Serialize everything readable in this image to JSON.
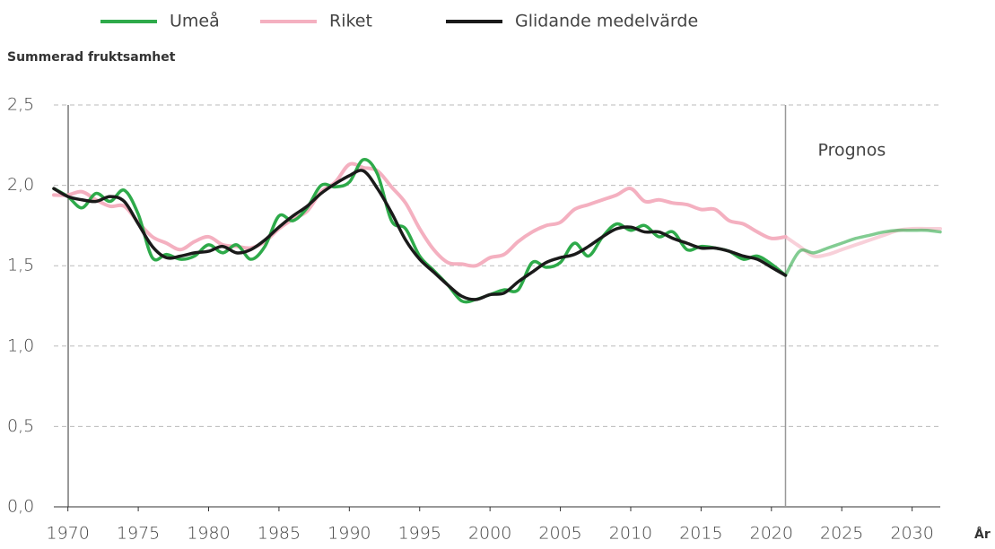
{
  "chart_data": {
    "type": "line",
    "y_axis_label": "Summerad fruktsamhet",
    "x_axis_label": "År",
    "annotation": "Prognos",
    "forecast_start": 2021,
    "x": [
      1969,
      1970,
      1971,
      1972,
      1973,
      1974,
      1975,
      1976,
      1977,
      1978,
      1979,
      1980,
      1981,
      1982,
      1983,
      1984,
      1985,
      1986,
      1987,
      1988,
      1989,
      1990,
      1991,
      1992,
      1993,
      1994,
      1995,
      1996,
      1997,
      1998,
      1999,
      2000,
      2001,
      2002,
      2003,
      2004,
      2005,
      2006,
      2007,
      2008,
      2009,
      2010,
      2011,
      2012,
      2013,
      2014,
      2015,
      2016,
      2017,
      2018,
      2019,
      2020,
      2021,
      2022,
      2023,
      2024,
      2025,
      2026,
      2027,
      2028,
      2029,
      2030,
      2031,
      2032
    ],
    "series": [
      {
        "name": "Umeå",
        "color": "#2eaa4a",
        "values": [
          1.98,
          1.93,
          1.86,
          1.95,
          1.9,
          1.97,
          1.82,
          1.55,
          1.57,
          1.54,
          1.56,
          1.63,
          1.58,
          1.63,
          1.54,
          1.62,
          1.81,
          1.78,
          1.86,
          2.0,
          1.99,
          2.02,
          2.16,
          2.07,
          1.78,
          1.73,
          1.56,
          1.47,
          1.38,
          1.28,
          1.29,
          1.32,
          1.35,
          1.35,
          1.52,
          1.49,
          1.52,
          1.64,
          1.56,
          1.68,
          1.76,
          1.72,
          1.75,
          1.68,
          1.71,
          1.6,
          1.62,
          1.61,
          1.59,
          1.54,
          1.56,
          1.51,
          1.44,
          1.59,
          1.58,
          1.61,
          1.64,
          1.67,
          1.69,
          1.71,
          1.72,
          1.72,
          1.72,
          1.71
        ]
      },
      {
        "name": "Riket",
        "color": "#f4b0c0",
        "values": [
          1.94,
          1.94,
          1.96,
          1.91,
          1.87,
          1.87,
          1.77,
          1.68,
          1.64,
          1.6,
          1.65,
          1.68,
          1.63,
          1.62,
          1.61,
          1.65,
          1.73,
          1.79,
          1.84,
          1.96,
          2.02,
          2.13,
          2.11,
          2.09,
          1.99,
          1.89,
          1.73,
          1.6,
          1.52,
          1.51,
          1.5,
          1.55,
          1.57,
          1.65,
          1.71,
          1.75,
          1.77,
          1.85,
          1.88,
          1.91,
          1.94,
          1.98,
          1.9,
          1.91,
          1.89,
          1.88,
          1.85,
          1.85,
          1.78,
          1.76,
          1.71,
          1.67,
          1.68,
          1.62,
          1.56,
          1.57,
          1.6,
          1.63,
          1.66,
          1.69,
          1.72,
          1.73,
          1.73,
          1.73
        ]
      },
      {
        "name": "Glidande medelvärde",
        "color": "#1a1a1a",
        "values": [
          1.98,
          1.93,
          1.91,
          1.9,
          1.93,
          1.9,
          1.76,
          1.62,
          1.55,
          1.56,
          1.58,
          1.59,
          1.62,
          1.58,
          1.6,
          1.66,
          1.74,
          1.81,
          1.87,
          1.95,
          2.01,
          2.06,
          2.09,
          1.98,
          1.83,
          1.66,
          1.54,
          1.46,
          1.38,
          1.31,
          1.29,
          1.32,
          1.33,
          1.4,
          1.46,
          1.52,
          1.55,
          1.57,
          1.62,
          1.68,
          1.73,
          1.74,
          1.71,
          1.71,
          1.67,
          1.64,
          1.61,
          1.61,
          1.59,
          1.56,
          1.54,
          1.49,
          1.44,
          null,
          null,
          null,
          null,
          null,
          null,
          null,
          null,
          null,
          null,
          null
        ]
      }
    ],
    "xlim": [
      1969,
      2032
    ],
    "xticks": [
      1970,
      1975,
      1980,
      1985,
      1990,
      1995,
      2000,
      2005,
      2010,
      2015,
      2020,
      2025,
      2030
    ],
    "ylim": [
      0,
      2.5
    ],
    "yticks": [
      {
        "value": 0,
        "label": "0,0"
      },
      {
        "value": 0.5,
        "label": "0,5"
      },
      {
        "value": 1,
        "label": "1,0"
      },
      {
        "value": 1.5,
        "label": "1,5"
      },
      {
        "value": 2,
        "label": "2,0"
      },
      {
        "value": 2.5,
        "label": "2,5"
      }
    ],
    "grid": true
  }
}
